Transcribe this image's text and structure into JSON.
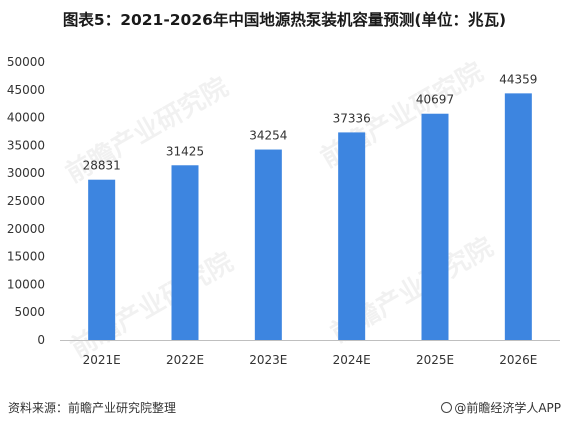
{
  "title": "图表5：2021-2026年中国地源热泵装机容量预测(单位：兆瓦)",
  "source": "资料来源：前瞻产业研究院整理",
  "brand": "@前瞻经济学人APP",
  "watermark": "前瞻产业研究院",
  "colors": {
    "bar": "#3d85e0",
    "axis": "#bfbfbf",
    "text": "#333333"
  },
  "chart_data": {
    "type": "bar",
    "title": "图表5：2021-2026年中国地源热泵装机容量预测(单位：兆瓦)",
    "categories": [
      "2021E",
      "2022E",
      "2023E",
      "2024E",
      "2025E",
      "2026E"
    ],
    "values": [
      28831,
      31425,
      34254,
      37336,
      40697,
      44359
    ],
    "yticks": [
      0,
      5000,
      10000,
      15000,
      20000,
      25000,
      30000,
      35000,
      40000,
      45000,
      50000
    ],
    "ylim": [
      0,
      50000
    ],
    "grid": false,
    "legend": "none"
  }
}
